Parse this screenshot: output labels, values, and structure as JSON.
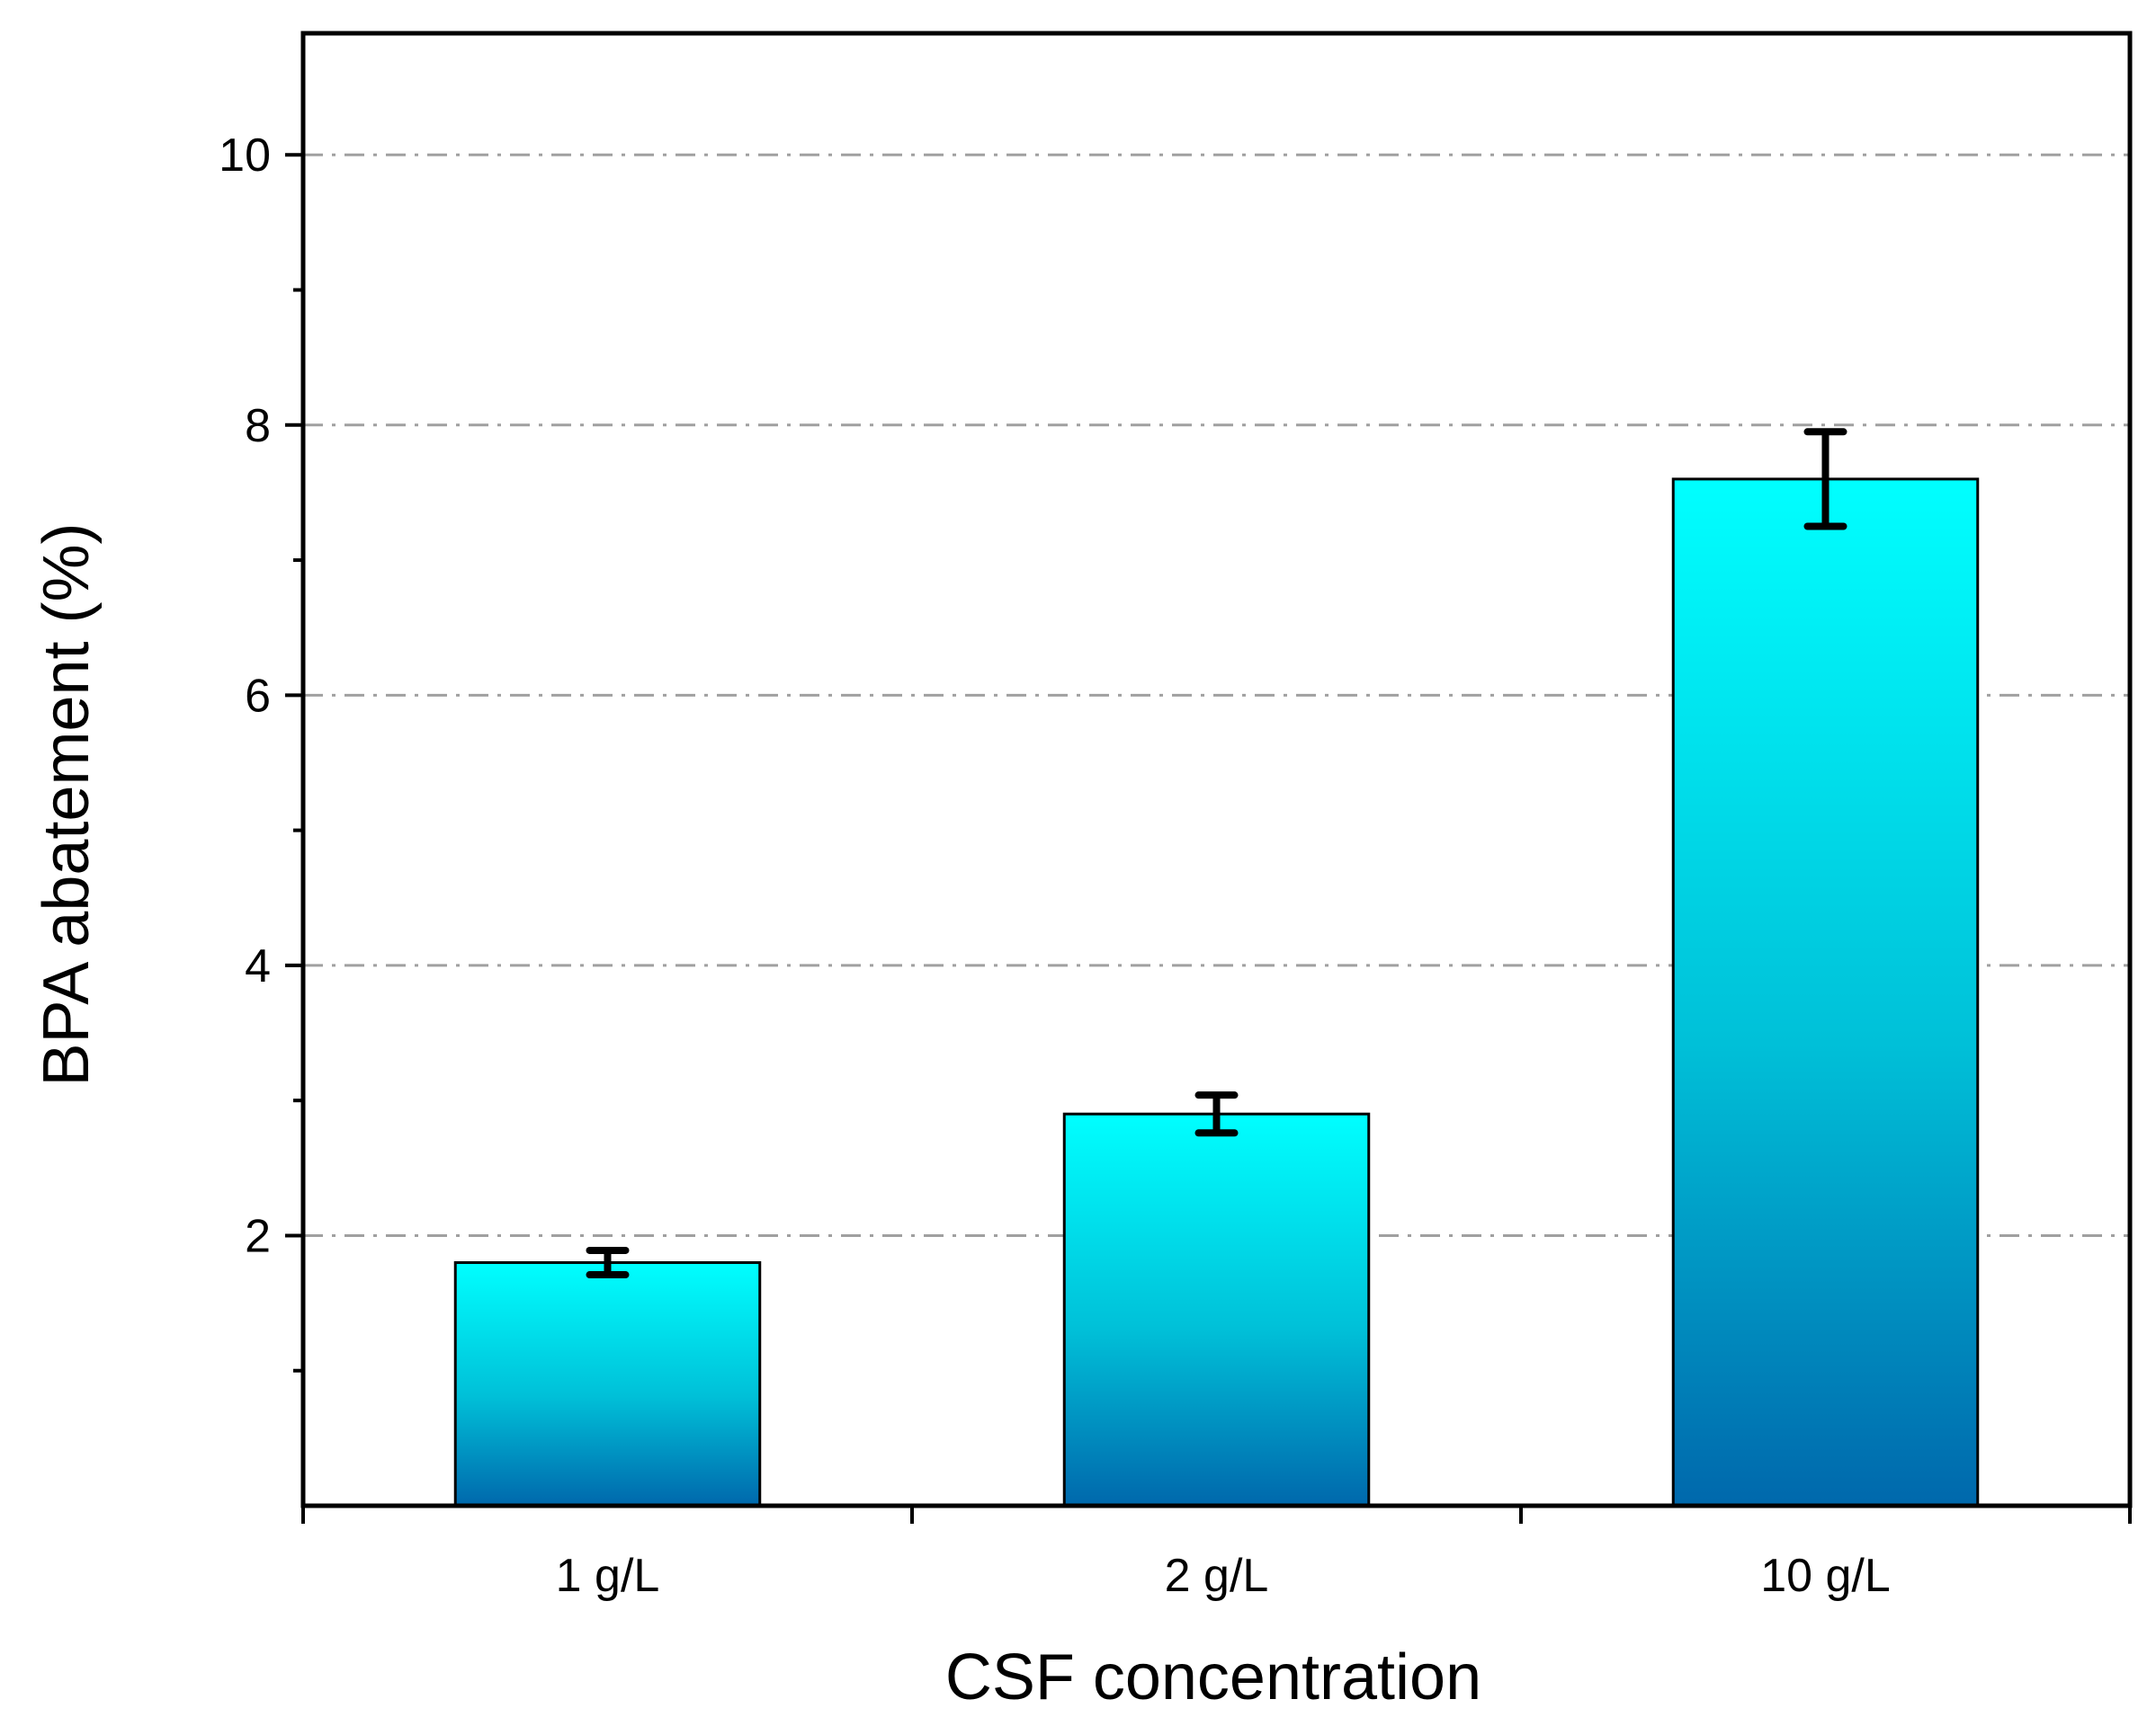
{
  "chart_data": {
    "type": "bar",
    "title": "",
    "xlabel": "CSF concentration",
    "ylabel": "BPA abatement (%)",
    "categories": [
      "1 g/L",
      "2 g/L",
      "10 g/L"
    ],
    "values": [
      1.8,
      2.9,
      7.6
    ],
    "errors": [
      0.09,
      0.14,
      0.35
    ],
    "ylim": [
      0,
      10.9
    ],
    "yticks": [
      2,
      4,
      6,
      8,
      10
    ],
    "ytick_labels": [
      "2",
      "4",
      "6",
      "8",
      "10"
    ],
    "yminor_ticks": [
      1,
      3,
      5,
      7,
      9
    ],
    "grid": "horizontal dash-dot at major y ticks",
    "colors": {
      "bar_top": "#00ffff",
      "bar_mid": "#00c0d8",
      "bar_bottom": "#0068ac",
      "bar_edge": "#000000",
      "error_bar": "#000000",
      "grid": "#a0a0a0",
      "axis": "#000000"
    }
  }
}
